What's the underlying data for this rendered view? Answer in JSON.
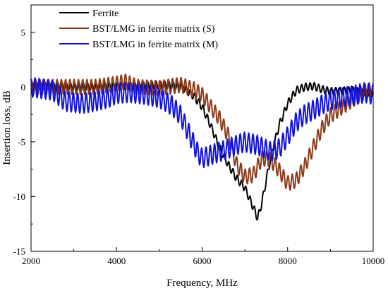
{
  "chart_data": {
    "type": "line",
    "xlabel": "Frequency, MHz",
    "ylabel": "Insertion loss, dB",
    "xlim": [
      2000,
      10000
    ],
    "ylim": [
      -15,
      7.5
    ],
    "x_ticks": [
      2000,
      4000,
      6000,
      8000,
      10000
    ],
    "y_ticks": [
      5,
      0,
      -5,
      -10,
      -15
    ],
    "grid": false,
    "legend_position": "top-left",
    "series": [
      {
        "name": "Ferrite",
        "color": "#000000",
        "ripple": 0.35,
        "x": [
          2000,
          2500,
          3000,
          3500,
          4000,
          4500,
          5000,
          5500,
          5800,
          6000,
          6200,
          6400,
          6600,
          6800,
          7000,
          7200,
          7300,
          7400,
          7600,
          7800,
          8000,
          8200,
          8400,
          8600,
          8800,
          9000,
          9500,
          9800,
          10000
        ],
        "y": [
          0.1,
          0.1,
          0.0,
          0.0,
          0.1,
          0.1,
          0.2,
          0.1,
          -0.8,
          -1.8,
          -3.5,
          -5.5,
          -7.0,
          -8.3,
          -9.2,
          -11.0,
          -12.0,
          -10.5,
          -6.5,
          -3.5,
          -1.5,
          -0.3,
          0.0,
          0.1,
          -0.2,
          -0.4,
          -0.3,
          -0.5,
          -0.5
        ]
      },
      {
        "name": "BST/LMG in ferrite matrix (S)",
        "color": "#8b3a1a",
        "ripple": 0.7,
        "x": [
          2000,
          2500,
          3000,
          3500,
          4000,
          4200,
          4500,
          5000,
          5500,
          5800,
          6000,
          6200,
          6400,
          6600,
          6800,
          7000,
          7200,
          7400,
          7600,
          7800,
          8000,
          8200,
          8400,
          8600,
          8800,
          9000,
          9500,
          9800,
          10000
        ],
        "y": [
          0.0,
          0.0,
          0.0,
          0.0,
          0.3,
          0.5,
          0.0,
          -0.1,
          0.2,
          -0.2,
          -0.7,
          -1.8,
          -2.8,
          -4.3,
          -7.0,
          -8.2,
          -8.0,
          -6.5,
          -6.6,
          -7.6,
          -8.8,
          -8.5,
          -7.2,
          -5.5,
          -3.8,
          -2.6,
          -1.2,
          -0.4,
          -0.2
        ]
      },
      {
        "name": "BST/LMG in ferrite matrix (M)",
        "color": "#1010e0",
        "ripple": 0.9,
        "x": [
          2000,
          2500,
          2800,
          3200,
          3500,
          3800,
          4000,
          4300,
          4700,
          5000,
          5300,
          5500,
          5700,
          5900,
          6000,
          6200,
          6500,
          6800,
          7000,
          7300,
          7600,
          7800,
          8000,
          8200,
          8400,
          8600,
          8800,
          9000,
          9500,
          9800,
          10000
        ],
        "y": [
          0.0,
          -0.3,
          -1.3,
          -1.5,
          -1.3,
          -1.0,
          -0.6,
          -0.5,
          -0.7,
          -1.0,
          -1.7,
          -2.6,
          -4.3,
          -6.0,
          -6.5,
          -6.2,
          -5.8,
          -5.3,
          -5.0,
          -5.3,
          -5.9,
          -5.6,
          -4.5,
          -3.2,
          -2.5,
          -2.1,
          -1.6,
          -1.2,
          -0.8,
          -0.5,
          -0.7
        ]
      }
    ]
  }
}
